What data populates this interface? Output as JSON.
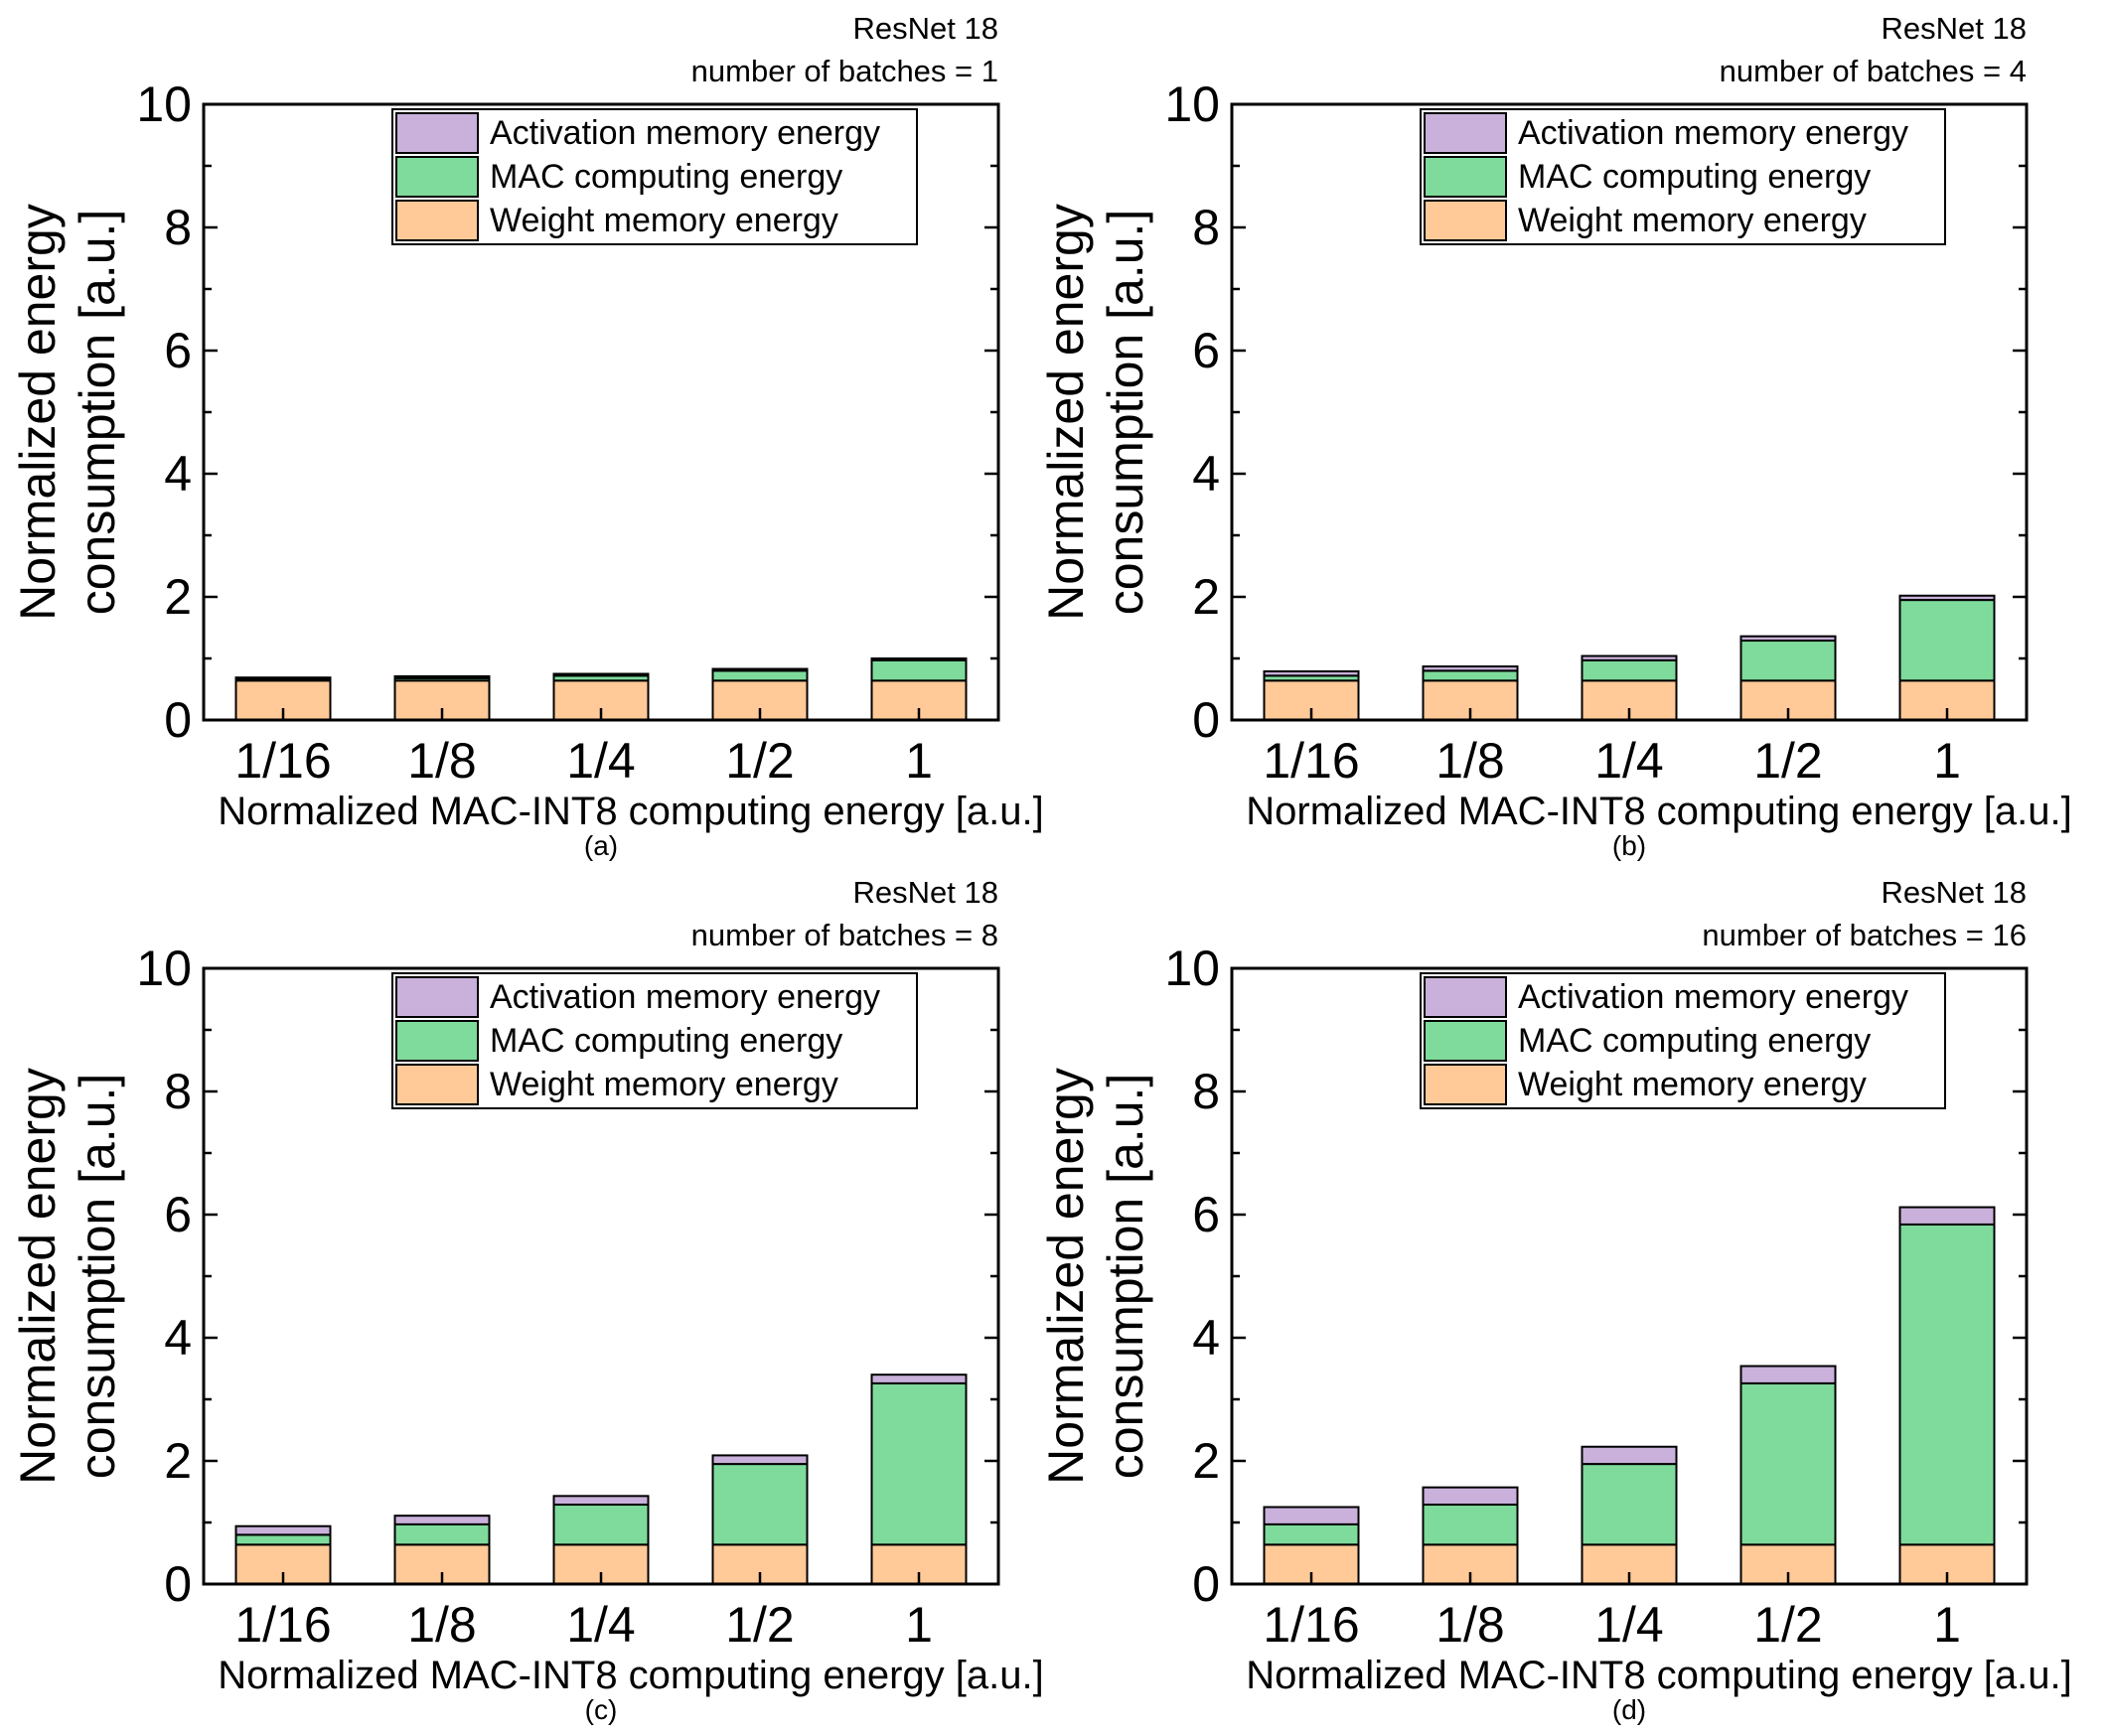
{
  "colors": {
    "weight": "#FFC998",
    "mac": "#7EDB9C",
    "activation": "#C9B1DB",
    "frame": "#000000"
  },
  "legend_labels": {
    "activation": "Activation memory energy",
    "mac": "MAC computing energy",
    "weight": "Weight memory energy"
  },
  "chart_data": [
    {
      "type": "bar",
      "stacked": true,
      "panel_label": "(a)",
      "title": "ResNet 18",
      "subtitle": "number of batches = 1",
      "xlabel": "Normalized MAC-INT8 computing energy [a.u.]",
      "ylabel": [
        "Normalized energy",
        "consumption [a.u.]"
      ],
      "ylim": [
        0,
        10
      ],
      "yticks": [
        "0",
        "2",
        "4",
        "6",
        "8",
        "10"
      ],
      "categories": [
        "1/16",
        "1/8",
        "1/4",
        "1/2",
        "1"
      ],
      "legend_position": "top-right",
      "series": [
        {
          "name": "Weight memory energy",
          "values": [
            0.64,
            0.64,
            0.64,
            0.64,
            0.64
          ]
        },
        {
          "name": "MAC computing energy",
          "values": [
            0.02,
            0.04,
            0.08,
            0.16,
            0.33
          ]
        },
        {
          "name": "Activation memory energy",
          "values": [
            0.03,
            0.03,
            0.03,
            0.03,
            0.03
          ]
        }
      ]
    },
    {
      "type": "bar",
      "stacked": true,
      "panel_label": "(b)",
      "title": "ResNet 18",
      "subtitle": "number of batches = 4",
      "xlabel": "Normalized MAC-INT8 computing energy [a.u.]",
      "ylabel": [
        "Normalized energy",
        "consumption [a.u.]"
      ],
      "ylim": [
        0,
        10
      ],
      "yticks": [
        "0",
        "2",
        "4",
        "6",
        "8",
        "10"
      ],
      "categories": [
        "1/16",
        "1/8",
        "1/4",
        "1/2",
        "1"
      ],
      "legend_position": "top-right",
      "series": [
        {
          "name": "Weight memory energy",
          "values": [
            0.64,
            0.64,
            0.64,
            0.64,
            0.64
          ]
        },
        {
          "name": "MAC computing energy",
          "values": [
            0.08,
            0.16,
            0.33,
            0.65,
            1.31
          ]
        },
        {
          "name": "Activation memory energy",
          "values": [
            0.07,
            0.07,
            0.07,
            0.07,
            0.07
          ]
        }
      ]
    },
    {
      "type": "bar",
      "stacked": true,
      "panel_label": "(c)",
      "title": "ResNet 18",
      "subtitle": "number of batches = 8",
      "xlabel": "Normalized MAC-INT8 computing energy [a.u.]",
      "ylabel": [
        "Normalized energy",
        "consumption [a.u.]"
      ],
      "ylim": [
        0,
        10
      ],
      "yticks": [
        "0",
        "2",
        "4",
        "6",
        "8",
        "10"
      ],
      "categories": [
        "1/16",
        "1/8",
        "1/4",
        "1/2",
        "1"
      ],
      "legend_position": "top-right",
      "series": [
        {
          "name": "Weight memory energy",
          "values": [
            0.64,
            0.64,
            0.64,
            0.64,
            0.64
          ]
        },
        {
          "name": "MAC computing energy",
          "values": [
            0.16,
            0.33,
            0.65,
            1.31,
            2.62
          ]
        },
        {
          "name": "Activation memory energy",
          "values": [
            0.14,
            0.14,
            0.14,
            0.14,
            0.14
          ]
        }
      ]
    },
    {
      "type": "bar",
      "stacked": true,
      "panel_label": "(d)",
      "title": "ResNet 18",
      "subtitle": "number of batches = 16",
      "xlabel": "Normalized MAC-INT8 computing energy [a.u.]",
      "ylabel": [
        "Normalized energy",
        "consumption [a.u.]"
      ],
      "ylim": [
        0,
        10
      ],
      "yticks": [
        "0",
        "2",
        "4",
        "6",
        "8",
        "10"
      ],
      "categories": [
        "1/16",
        "1/8",
        "1/4",
        "1/2",
        "1"
      ],
      "legend_position": "top-right",
      "series": [
        {
          "name": "Weight memory energy",
          "values": [
            0.64,
            0.64,
            0.64,
            0.64,
            0.64
          ]
        },
        {
          "name": "MAC computing energy",
          "values": [
            0.33,
            0.65,
            1.31,
            2.62,
            5.2
          ]
        },
        {
          "name": "Activation memory energy",
          "values": [
            0.28,
            0.28,
            0.28,
            0.28,
            0.28
          ]
        }
      ]
    }
  ]
}
